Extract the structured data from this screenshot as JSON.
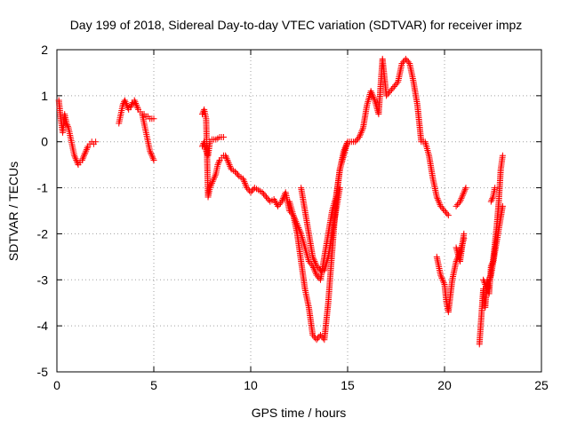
{
  "chart_data": {
    "type": "scatter",
    "title": "Day 199 of 2018, Sidereal Day-to-day VTEC variation (SDTVAR) for receiver impz",
    "xlabel": "GPS time / hours",
    "ylabel": "SDTVAR / TECUs",
    "xlim": [
      0,
      25
    ],
    "ylim": [
      -5,
      2
    ],
    "xticks": [
      "0",
      "5",
      "10",
      "15",
      "20",
      "25"
    ],
    "yticks": [
      "2",
      "1",
      "0",
      "-1",
      "-2",
      "-3",
      "-4",
      "-5"
    ],
    "grid": true,
    "marker": "+",
    "color": "#ff0000",
    "segments": [
      {
        "x": [
          0.1,
          0.2,
          0.3,
          0.4,
          0.5,
          0.6,
          0.7,
          0.8,
          0.9,
          1.0,
          1.1,
          1.2,
          1.3,
          1.4,
          1.5,
          1.6,
          1.7,
          1.8,
          1.9,
          2.0
        ],
        "y": [
          0.9,
          0.5,
          0.2,
          0.6,
          0.4,
          0.3,
          0.1,
          -0.1,
          -0.3,
          -0.4,
          -0.5,
          -0.45,
          -0.4,
          -0.3,
          -0.2,
          -0.1,
          -0.05,
          0.0,
          -0.05,
          0.0
        ]
      },
      {
        "x": [
          3.2,
          3.3,
          3.4,
          3.5,
          3.6,
          3.7,
          3.8,
          3.9,
          4.0,
          4.1,
          4.2,
          4.3,
          4.4,
          4.5,
          4.6,
          4.7,
          4.8,
          4.9,
          5.0
        ],
        "y": [
          0.4,
          0.6,
          0.8,
          0.9,
          0.8,
          0.7,
          0.75,
          0.85,
          0.9,
          0.8,
          0.7,
          0.65,
          0.6,
          0.4,
          0.2,
          0.0,
          -0.2,
          -0.3,
          -0.4
        ]
      },
      {
        "x": [
          4.5,
          4.6,
          4.7,
          4.8,
          4.9,
          5.0
        ],
        "y": [
          0.6,
          0.55,
          0.55,
          0.5,
          0.5,
          0.5
        ]
      },
      {
        "x": [
          7.5,
          7.6,
          7.7,
          7.8,
          7.9,
          8.0,
          8.1,
          8.2,
          8.3,
          8.4,
          8.5,
          8.6,
          8.7,
          8.8,
          8.9,
          9.0,
          9.2,
          9.4,
          9.6,
          9.8,
          10.0,
          10.2,
          10.4,
          10.6,
          10.8,
          11.0,
          11.2,
          11.4,
          11.6,
          11.8,
          12.0,
          12.2,
          12.4,
          12.6,
          12.8,
          13.0,
          13.2,
          13.4,
          13.6,
          13.8,
          14.0,
          14.2,
          14.4,
          14.6,
          14.8,
          15.0,
          15.2,
          15.4,
          15.6,
          15.8,
          16.0,
          16.2,
          16.4,
          16.6,
          16.8,
          17.0,
          17.2,
          17.4,
          17.6,
          17.8,
          18.0,
          18.2,
          18.4,
          18.6,
          18.8,
          19.0,
          19.2,
          19.4,
          19.6,
          19.8,
          20.0,
          20.2
        ],
        "y": [
          0.6,
          0.7,
          0.5,
          -1.2,
          -1.0,
          -0.9,
          -0.8,
          -0.7,
          -0.5,
          -0.4,
          -0.35,
          -0.3,
          -0.3,
          -0.4,
          -0.5,
          -0.6,
          -0.65,
          -0.75,
          -0.8,
          -1.0,
          -1.1,
          -1.0,
          -1.05,
          -1.1,
          -1.2,
          -1.3,
          -1.25,
          -1.4,
          -1.3,
          -1.1,
          -1.5,
          -1.6,
          -1.8,
          -2.0,
          -2.3,
          -2.6,
          -2.7,
          -2.9,
          -3.0,
          -2.5,
          -2.0,
          -1.5,
          -1.2,
          -0.6,
          -0.3,
          0.0,
          0.0,
          0.0,
          0.1,
          0.3,
          0.8,
          1.1,
          0.9,
          0.6,
          1.8,
          1.0,
          1.1,
          1.2,
          1.3,
          1.7,
          1.8,
          1.7,
          1.3,
          0.8,
          0.0,
          0.0,
          -0.3,
          -0.8,
          -1.2,
          -1.4,
          -1.5,
          -1.6
        ]
      },
      {
        "x": [
          7.5,
          7.6,
          7.7,
          7.8,
          7.9,
          8.0,
          8.2,
          8.4,
          8.6
        ],
        "y": [
          -0.1,
          0.0,
          -0.2,
          -0.3,
          0.0,
          0.05,
          0.05,
          0.1,
          0.1
        ]
      },
      {
        "x": [
          12.0,
          12.2,
          12.4,
          12.6,
          12.8,
          13.0,
          13.2,
          13.4,
          13.6,
          13.8,
          14.0,
          14.2,
          14.4,
          14.6,
          14.8,
          15.0
        ],
        "y": [
          -1.3,
          -1.6,
          -2.0,
          -2.6,
          -3.2,
          -3.6,
          -4.2,
          -4.3,
          -4.2,
          -4.3,
          -3.5,
          -2.4,
          -1.3,
          -0.6,
          -0.2,
          0.0
        ]
      },
      {
        "x": [
          12.6,
          12.8,
          13.0,
          13.2,
          13.4,
          13.6,
          13.8,
          14.0,
          14.2,
          14.4,
          14.6
        ],
        "y": [
          -1.0,
          -1.5,
          -2.0,
          -2.5,
          -2.7,
          -2.8,
          -2.8,
          -2.5,
          -2.0,
          -1.5,
          -1.0
        ]
      },
      {
        "x": [
          19.6,
          19.8,
          20.0,
          20.1,
          20.2,
          20.4,
          20.6,
          20.8,
          21.0
        ],
        "y": [
          -2.5,
          -2.9,
          -3.1,
          -3.5,
          -3.7,
          -3.0,
          -2.6,
          -2.4,
          -2.1
        ]
      },
      {
        "x": [
          20.6,
          20.8,
          21.0,
          21.1
        ],
        "y": [
          -1.4,
          -1.3,
          -1.1,
          -1.0
        ]
      },
      {
        "x": [
          20.6,
          20.8,
          21.0
        ],
        "y": [
          -2.3,
          -2.6,
          -2.0
        ]
      },
      {
        "x": [
          21.8,
          21.9,
          22.0,
          22.1,
          22.2,
          22.3,
          22.4,
          22.5,
          22.6,
          22.7,
          22.8,
          22.9,
          23.0
        ],
        "y": [
          -4.4,
          -3.8,
          -3.2,
          -3.6,
          -3.0,
          -3.3,
          -2.7,
          -2.6,
          -2.2,
          -1.8,
          -1.3,
          -0.6,
          -0.3
        ]
      },
      {
        "x": [
          22.0,
          22.2,
          22.4,
          22.6,
          22.8,
          23.0
        ],
        "y": [
          -3.0,
          -3.2,
          -2.9,
          -2.4,
          -1.9,
          -1.4
        ]
      },
      {
        "x": [
          22.4,
          22.5,
          22.6
        ],
        "y": [
          -1.3,
          -1.2,
          -1.0
        ]
      }
    ]
  }
}
